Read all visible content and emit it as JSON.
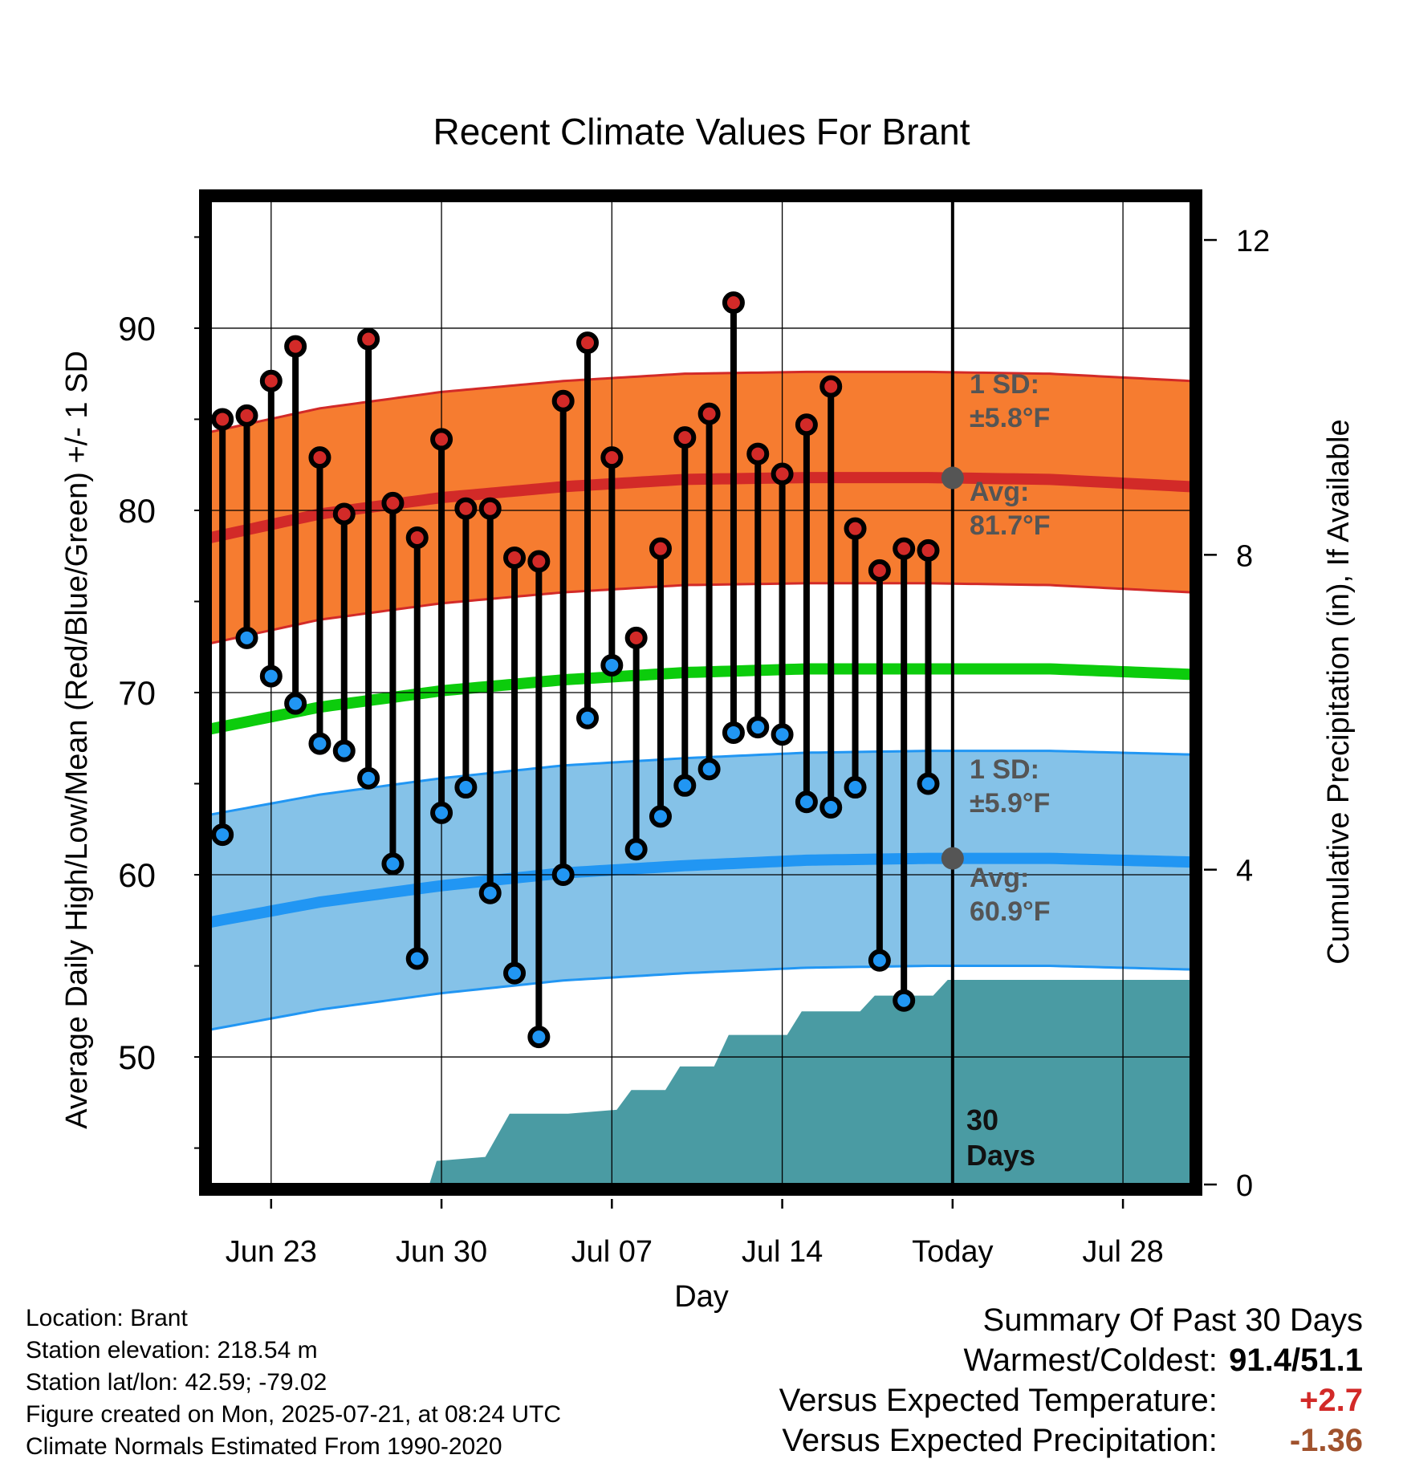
{
  "chart_data": {
    "type": "line",
    "title": "Recent Climate Values For Brant",
    "xlabel": "Day",
    "ylabel": "Average Daily High/Low/Mean (Red/Blue/Green) +/- 1 SD",
    "y2label": "Cumulative Precipitation (in), If Available",
    "x_range_days": [
      0.5,
      40.8
    ],
    "ylim": [
      43,
      97
    ],
    "y2lim": [
      0,
      12.5
    ],
    "grid": true,
    "yticks": [
      50,
      60,
      70,
      80,
      90
    ],
    "y2ticks": [
      0,
      4,
      8,
      12
    ],
    "xticks": [
      {
        "day": 3,
        "label": "Jun 23"
      },
      {
        "day": 10,
        "label": "Jun 30"
      },
      {
        "day": 17,
        "label": "Jul 07"
      },
      {
        "day": 24,
        "label": "Jul 14"
      },
      {
        "day": 31,
        "label": "Today"
      },
      {
        "day": 38,
        "label": "Jul 28"
      }
    ],
    "today_day": 31,
    "days": [
      1,
      2,
      3,
      4,
      5,
      6,
      7,
      8,
      9,
      10,
      11,
      12,
      13,
      14,
      15,
      16,
      17,
      18,
      19,
      20,
      21,
      22,
      23,
      24,
      25,
      26,
      27,
      28,
      29,
      30
    ],
    "highs": [
      85.0,
      85.2,
      87.1,
      89.0,
      82.9,
      79.8,
      89.4,
      80.4,
      78.5,
      83.9,
      80.1,
      80.1,
      77.4,
      77.2,
      86.0,
      89.2,
      82.9,
      73.0,
      77.9,
      84.0,
      85.3,
      91.4,
      83.1,
      82.0,
      84.7,
      86.8,
      79.0,
      76.7,
      77.9,
      77.8
    ],
    "lows": [
      62.2,
      73.0,
      70.9,
      69.4,
      67.2,
      66.8,
      65.3,
      60.6,
      55.4,
      63.4,
      64.8,
      59.0,
      54.6,
      51.1,
      60.0,
      68.6,
      71.5,
      61.4,
      63.2,
      64.9,
      65.8,
      67.8,
      68.1,
      67.7,
      64.0,
      63.7,
      64.8,
      55.3,
      53.1,
      65.0
    ],
    "normals": {
      "days": [
        0.5,
        5,
        10,
        15,
        20,
        25,
        30,
        35,
        40.8
      ],
      "high_avg": [
        78.5,
        79.8,
        80.7,
        81.3,
        81.7,
        81.8,
        81.8,
        81.7,
        81.3
      ],
      "high_sd": 5.8,
      "low_avg": [
        57.4,
        58.5,
        59.4,
        60.1,
        60.5,
        60.8,
        60.9,
        60.9,
        60.7
      ],
      "low_sd": 5.9,
      "mean_avg": [
        68.0,
        69.2,
        70.1,
        70.7,
        71.1,
        71.3,
        71.3,
        71.3,
        71.0
      ]
    },
    "precip_cumulative": [
      [
        0.5,
        0.0
      ],
      [
        9.5,
        0.0
      ],
      [
        9.8,
        0.3
      ],
      [
        11.8,
        0.35
      ],
      [
        12.8,
        0.9
      ],
      [
        15.2,
        0.9
      ],
      [
        17.2,
        0.95
      ],
      [
        17.8,
        1.2
      ],
      [
        19.2,
        1.2
      ],
      [
        19.8,
        1.5
      ],
      [
        21.2,
        1.5
      ],
      [
        21.8,
        1.9
      ],
      [
        24.2,
        1.9
      ],
      [
        24.8,
        2.2
      ],
      [
        27.2,
        2.2
      ],
      [
        27.8,
        2.4
      ],
      [
        30.2,
        2.4
      ],
      [
        30.8,
        2.6
      ],
      [
        40.8,
        2.6
      ]
    ],
    "colors": {
      "high": "#d22a28",
      "low": "#2196f3",
      "mean": "#0ccc0c",
      "high_band": "#f67c30",
      "low_band": "#85c2e8",
      "precip": "#4a9ba3",
      "avg_marker": "#555555"
    }
  },
  "annotations": {
    "high_sd_line1": "1 SD:",
    "high_sd_line2": "±5.8°F",
    "high_avg_line1": "Avg:",
    "high_avg_line2": "81.7°F",
    "low_sd_line1": "1 SD:",
    "low_sd_line2": "±5.9°F",
    "low_avg_line1": "Avg:",
    "low_avg_line2": "60.9°F",
    "precip_line1": "30",
    "precip_line2": "Days"
  },
  "info": {
    "location": "Location: Brant",
    "elevation": "Station elevation: 218.54 m",
    "latlon": "Station lat/lon: 42.59; -79.02",
    "created": "Figure created on Mon, 2025-07-21, at 08:24 UTC",
    "normals": "Climate Normals Estimated From 1990-2020"
  },
  "summary": {
    "heading": "Summary Of Past 30 Days",
    "warm_cold_label": "Warmest/Coldest:",
    "warm_cold_value": "91.4/51.1",
    "temp_label": "Versus Expected Temperature:",
    "temp_value": "+2.7",
    "temp_color": "#d22a28",
    "precip_label": "Versus Expected Precipitation:",
    "precip_value": "-1.36",
    "precip_color": "#a0522d"
  }
}
